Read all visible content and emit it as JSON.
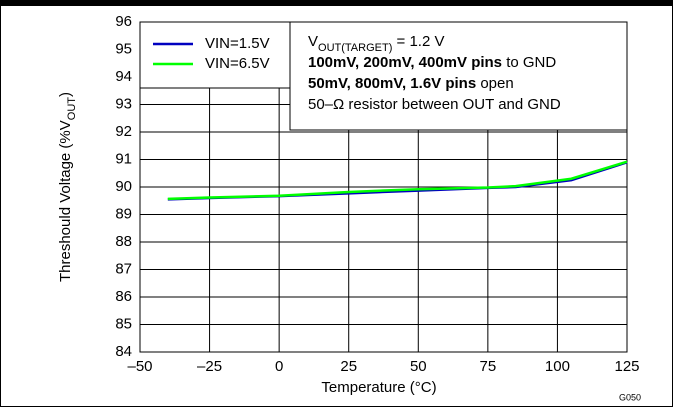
{
  "chart_data": {
    "type": "line",
    "x": [
      -40,
      -25,
      0,
      25,
      50,
      75,
      85,
      105,
      125
    ],
    "series": [
      {
        "name": "VIN=1.5V",
        "color": "#0000c0",
        "values": [
          89.55,
          89.6,
          89.67,
          89.77,
          89.87,
          89.97,
          90.0,
          90.25,
          90.9
        ]
      },
      {
        "name": "VIN=6.5V",
        "color": "#00ff00",
        "values": [
          89.57,
          89.62,
          89.68,
          89.82,
          89.92,
          89.98,
          90.03,
          90.3,
          90.92
        ]
      }
    ],
    "xlim": [
      -50,
      125
    ],
    "xticks": [
      {
        "value": -50,
        "label": "–50"
      },
      {
        "value": -25,
        "label": "–25"
      },
      0,
      25,
      50,
      75,
      100,
      125
    ],
    "ylim": [
      84,
      96
    ],
    "yticks": [
      84,
      85,
      86,
      87,
      88,
      89,
      90,
      91,
      92,
      93,
      94,
      95,
      96
    ],
    "grid": true,
    "xlabel": "Temperature (°C)",
    "ylabel": [
      {
        "text": "Threshould Voltage (%V"
      },
      {
        "text": "OUT",
        "style": "sub"
      },
      {
        "text": ")"
      }
    ],
    "annotations": [
      [
        {
          "text": "V"
        },
        {
          "text": "OUT(TARGET)",
          "style": "sub"
        },
        {
          "text": " = 1.2 V"
        }
      ],
      [
        {
          "text": "100mV, 200mV, 400mV pins",
          "style": "bold"
        },
        {
          "text": " to GND"
        }
      ],
      [
        {
          "text": "50mV, 800mV, 1.6V pins",
          "style": "bold"
        },
        {
          "text": " open"
        }
      ],
      [
        {
          "text": "50–Ω resistor between OUT and GND"
        }
      ]
    ],
    "figure_id": "G050"
  }
}
